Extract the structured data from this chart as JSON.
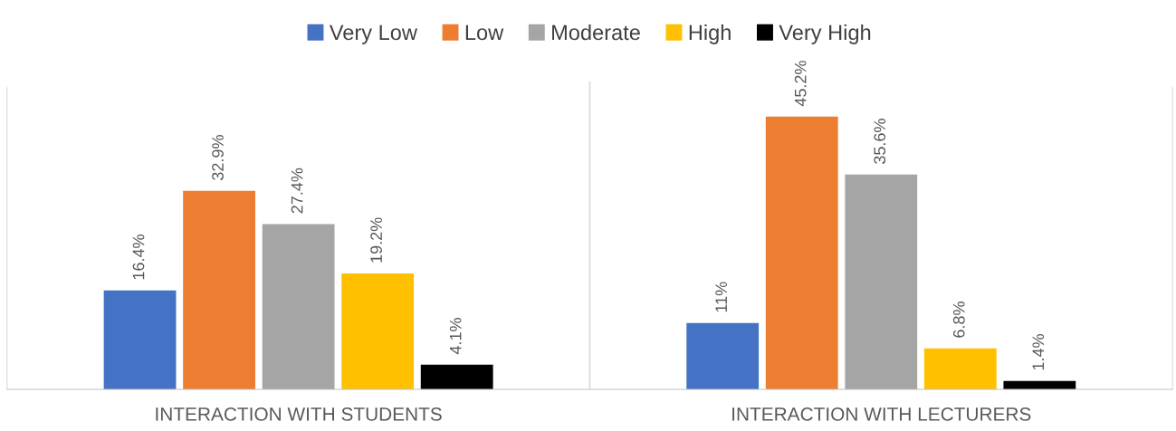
{
  "chart_data": {
    "type": "bar",
    "categories": [
      "INTERACTION WITH STUDENTS",
      "INTERACTION WITH LECTURERS"
    ],
    "series": [
      {
        "name": "Very Low",
        "color": "#4472c4",
        "values": [
          16.4,
          11
        ],
        "value_labels": [
          "16.4%",
          "11%"
        ]
      },
      {
        "name": "Low",
        "color": "#ed7d31",
        "values": [
          32.9,
          45.2
        ],
        "value_labels": [
          "32.9%",
          "45.2%"
        ]
      },
      {
        "name": "Moderate",
        "color": "#a5a5a5",
        "values": [
          27.4,
          35.6
        ],
        "value_labels": [
          "27.4%",
          "35.6%"
        ]
      },
      {
        "name": "High",
        "color": "#ffc000",
        "values": [
          19.2,
          6.8
        ],
        "value_labels": [
          "19.2%",
          "6.8%"
        ]
      },
      {
        "name": "Very High",
        "color": "#000000",
        "values": [
          4.1,
          1.4
        ],
        "value_labels": [
          "4.1%",
          "1.4%"
        ]
      }
    ],
    "ylim": [
      0,
      50
    ],
    "tick_labels": "x",
    "grid": false,
    "legend": "top"
  }
}
